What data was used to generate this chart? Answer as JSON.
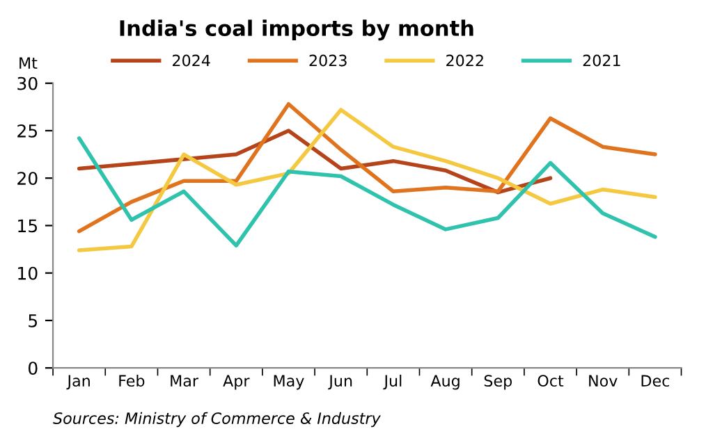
{
  "chart_data": {
    "type": "line",
    "title": "India's coal imports by month",
    "ylabel": "Mt",
    "categories": [
      "Jan",
      "Feb",
      "Mar",
      "Apr",
      "May",
      "Jun",
      "Jul",
      "Aug",
      "Sep",
      "Oct",
      "Nov",
      "Dec"
    ],
    "series": [
      {
        "name": "2024",
        "color": "#b5441a",
        "values": [
          21,
          21.5,
          22,
          22.5,
          25,
          21,
          21.8,
          20.8,
          18.5,
          20,
          null,
          null
        ]
      },
      {
        "name": "2023",
        "color": "#e0741e",
        "values": [
          14.4,
          17.5,
          19.7,
          19.7,
          27.8,
          23,
          18.6,
          19,
          18.6,
          26.3,
          23.3,
          22.5
        ]
      },
      {
        "name": "2022",
        "color": "#f5c842",
        "values": [
          12.4,
          12.8,
          22.5,
          19.3,
          20.5,
          27.2,
          23.3,
          21.8,
          20,
          17.3,
          18.8,
          18
        ]
      },
      {
        "name": "2021",
        "color": "#2fc2ad",
        "values": [
          24.2,
          15.6,
          18.6,
          12.9,
          20.7,
          20.2,
          17.2,
          14.6,
          15.8,
          21.6,
          16.3,
          13.8
        ]
      }
    ],
    "ylim": [
      0,
      30
    ],
    "yticks": [
      0,
      5,
      10,
      15,
      20,
      25,
      30
    ],
    "grid": false,
    "legend": "top",
    "marker": "none",
    "line_style": "solid",
    "annotations": [
      "Sources: Ministry of Commerce & Industry"
    ]
  }
}
